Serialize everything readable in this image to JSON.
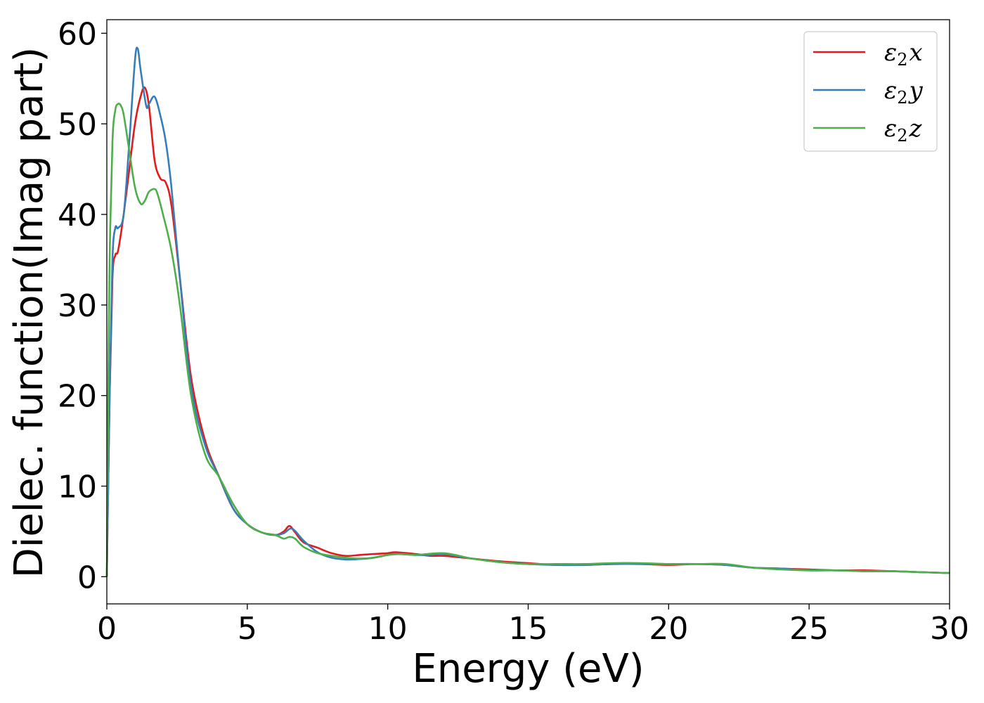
{
  "chart_data": {
    "type": "line",
    "title": "",
    "xlabel": "Energy (eV)",
    "ylabel": "Dielec. function(Imag part)",
    "xlim": [
      0,
      30
    ],
    "ylim": [
      -3,
      61.5
    ],
    "xticks": [
      0,
      5,
      10,
      15,
      20,
      25,
      30
    ],
    "yticks": [
      0,
      10,
      20,
      30,
      40,
      50,
      60
    ],
    "grid": false,
    "legend_position": "top-right",
    "series": [
      {
        "name": "ε2x",
        "legend": {
          "base": "ε",
          "sub": "2",
          "var": "x"
        },
        "color": "#e41a1c",
        "x": [
          0,
          0.1,
          0.2,
          0.3,
          0.4,
          0.6,
          0.8,
          1.0,
          1.2,
          1.35,
          1.5,
          1.7,
          1.9,
          2.1,
          2.3,
          2.6,
          3.0,
          3.5,
          4.0,
          4.5,
          5.0,
          5.5,
          6.0,
          6.3,
          6.5,
          6.7,
          7.0,
          7.5,
          8.0,
          8.5,
          9.0,
          9.5,
          10.0,
          10.3,
          11.0,
          11.5,
          12.0,
          13.0,
          14.0,
          15.0,
          16.0,
          17.0,
          18.0,
          19.0,
          20.0,
          21.0,
          22.0,
          23.0,
          24.0,
          25.0,
          26.0,
          27.0,
          28.0,
          29.0,
          30.0
        ],
        "y": [
          0,
          20,
          33,
          35.5,
          36,
          40,
          45,
          50,
          53,
          54,
          52,
          46,
          44,
          43.5,
          41,
          33,
          22,
          15,
          11,
          7.5,
          5.8,
          4.9,
          4.6,
          5.0,
          5.6,
          4.9,
          3.8,
          3.2,
          2.6,
          2.3,
          2.4,
          2.5,
          2.6,
          2.7,
          2.5,
          2.3,
          2.3,
          2.0,
          1.7,
          1.5,
          1.3,
          1.3,
          1.4,
          1.4,
          1.3,
          1.4,
          1.3,
          1.0,
          0.9,
          0.8,
          0.7,
          0.7,
          0.6,
          0.5,
          0.4
        ]
      },
      {
        "name": "ε2y",
        "legend": {
          "base": "ε",
          "sub": "2",
          "var": "y"
        },
        "color": "#377eb8",
        "x": [
          0,
          0.1,
          0.2,
          0.3,
          0.4,
          0.6,
          0.8,
          1.0,
          1.1,
          1.2,
          1.4,
          1.5,
          1.7,
          1.9,
          2.1,
          2.3,
          2.6,
          3.0,
          3.5,
          4.0,
          4.5,
          5.0,
          5.5,
          6.0,
          6.3,
          6.6,
          7.0,
          7.5,
          8.0,
          8.5,
          9.0,
          9.5,
          10.0,
          10.3,
          11.0,
          11.5,
          12.0,
          13.0,
          14.0,
          15.0,
          16.0,
          17.0,
          18.0,
          19.0,
          20.0,
          21.0,
          22.0,
          23.0,
          24.0,
          25.0,
          26.0,
          27.0,
          28.0,
          29.0,
          30.0
        ],
        "y": [
          0,
          20,
          35,
          38.5,
          38.5,
          40,
          48,
          57,
          58.3,
          56,
          52,
          52.2,
          53,
          51,
          48,
          43,
          33,
          21,
          14.5,
          11,
          7.5,
          5.8,
          4.9,
          4.6,
          4.8,
          5.3,
          4.0,
          2.7,
          2.1,
          1.9,
          1.95,
          2.1,
          2.4,
          2.5,
          2.4,
          2.4,
          2.5,
          2.0,
          1.6,
          1.4,
          1.3,
          1.3,
          1.4,
          1.4,
          1.4,
          1.4,
          1.3,
          1.0,
          0.9,
          0.7,
          0.7,
          0.6,
          0.6,
          0.5,
          0.4
        ]
      },
      {
        "name": "ε2z",
        "legend": {
          "base": "ε",
          "sub": "2",
          "var": "z"
        },
        "color": "#4daf4a",
        "x": [
          0,
          0.05,
          0.1,
          0.2,
          0.3,
          0.4,
          0.5,
          0.6,
          0.8,
          1.0,
          1.2,
          1.35,
          1.5,
          1.7,
          1.8,
          2.0,
          2.3,
          2.6,
          3.0,
          3.5,
          4.0,
          4.5,
          5.0,
          5.5,
          6.0,
          6.3,
          6.5,
          6.7,
          7.0,
          7.5,
          8.0,
          8.5,
          9.0,
          9.5,
          10.0,
          10.5,
          11.0,
          12.0,
          13.0,
          14.0,
          15.0,
          16.0,
          17.0,
          18.0,
          19.0,
          20.0,
          21.0,
          22.0,
          23.0,
          24.0,
          25.0,
          26.0,
          27.0,
          28.0,
          29.0,
          30.0
        ],
        "y": [
          0,
          20,
          35,
          48,
          51.5,
          52.2,
          52,
          51,
          47,
          43,
          41.2,
          41.5,
          42.5,
          42.8,
          42.3,
          40,
          36,
          30,
          20,
          13.5,
          11,
          8,
          5.8,
          4.9,
          4.6,
          4.2,
          4.4,
          4.2,
          3.3,
          2.6,
          2.3,
          2.1,
          2.0,
          2.1,
          2.4,
          2.5,
          2.4,
          2.6,
          2.0,
          1.6,
          1.4,
          1.4,
          1.4,
          1.5,
          1.5,
          1.4,
          1.4,
          1.4,
          1.0,
          0.8,
          0.7,
          0.7,
          0.6,
          0.6,
          0.5,
          0.4
        ]
      }
    ]
  }
}
